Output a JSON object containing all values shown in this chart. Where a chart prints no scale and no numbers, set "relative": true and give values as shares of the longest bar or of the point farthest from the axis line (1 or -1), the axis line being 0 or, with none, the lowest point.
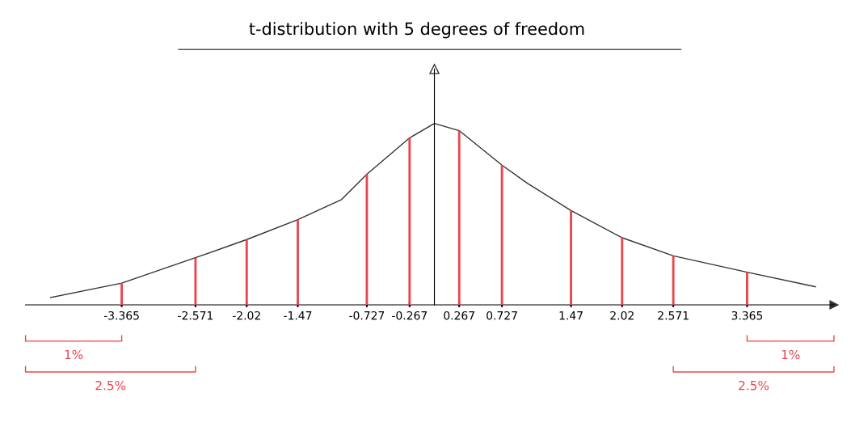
{
  "chart_data": {
    "type": "line",
    "title": "t-distribution with 5 degrees of freedom",
    "relative": true,
    "xlim": [
      -4.4,
      4.3
    ],
    "xticks": [
      -3.365,
      -2.571,
      -2.02,
      -1.47,
      -0.727,
      -0.267,
      0.267,
      0.727,
      1.47,
      2.02,
      2.571,
      3.365
    ],
    "series": [
      {
        "color": "#333333",
        "x": [
          -4.13,
          -3.365,
          -2.571,
          -2.02,
          -1.47,
          -1.0,
          -0.727,
          -0.267,
          0,
          0.267,
          0.727,
          1.0,
          1.47,
          2.02,
          2.571,
          3.365,
          4.1
        ],
        "values": [
          0.04,
          0.12,
          0.26,
          0.36,
          0.47,
          0.58,
          0.72,
          0.92,
          1.0,
          0.96,
          0.77,
          0.67,
          0.52,
          0.37,
          0.27,
          0.18,
          0.1
        ]
      },
      {
        "type": "bar",
        "color": "#e8474f",
        "x": [
          -3.365,
          -2.571,
          -2.02,
          -1.47,
          -0.727,
          -0.267,
          0.267,
          0.727,
          1.47,
          2.02,
          2.571,
          3.365
        ],
        "values": [
          0.12,
          0.26,
          0.36,
          0.47,
          0.72,
          0.92,
          0.96,
          0.77,
          0.52,
          0.37,
          0.27,
          0.18
        ]
      }
    ],
    "annotations": [
      "1%",
      "2.5%",
      "1%",
      "2.5%"
    ],
    "grid": false,
    "legend": false
  }
}
